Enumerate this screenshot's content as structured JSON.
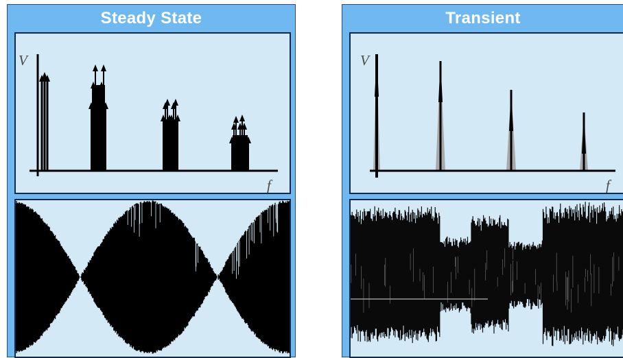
{
  "left": {
    "title": "Steady State",
    "spectrum": {
      "y_label": "V",
      "x_label": "f",
      "arrow_groups": 4
    },
    "waveform": {
      "description_shape": "beating envelope",
      "colors": {
        "fill": "#000000"
      }
    }
  },
  "right": {
    "title": "Transient",
    "spectrum": {
      "y_label": "V",
      "x_label": "f",
      "peaks": 4
    },
    "waveform": {
      "description_shape": "irregular bursts"
    }
  },
  "colors": {
    "panel_bg": "#6fb8f0",
    "box_bg": "#d3e9f5",
    "border": "#13294a",
    "title_text": "#ffffff",
    "peak_fill": "#a8a8a8"
  }
}
